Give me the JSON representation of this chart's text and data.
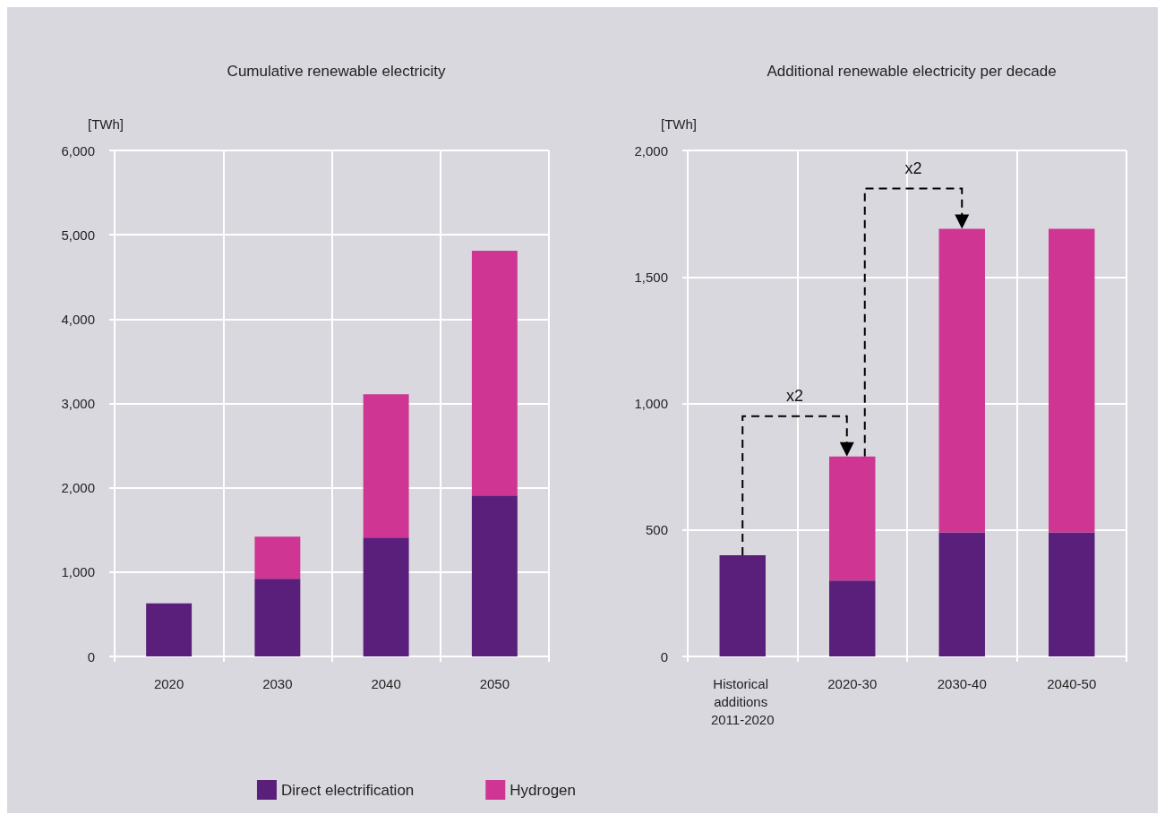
{
  "chart_data": [
    {
      "type": "bar",
      "title": "Cumulative renewable electricity",
      "ylabel": "[TWh]",
      "categories": [
        "2020",
        "2030",
        "2040",
        "2050"
      ],
      "stacked": true,
      "series": [
        {
          "name": "Direct electrification",
          "color": "#5a1e7b",
          "values": [
            630,
            920,
            1410,
            1910
          ]
        },
        {
          "name": "Hydrogen",
          "color": "#cf3592",
          "values": [
            null,
            500,
            1700,
            2900
          ]
        }
      ],
      "ylim": [
        0,
        6000
      ],
      "yticks": [
        {
          "value": 0,
          "label": "0"
        },
        {
          "value": 1000,
          "label": "1,000"
        },
        {
          "value": 2000,
          "label": "2,000"
        },
        {
          "value": 3000,
          "label": "3,000"
        },
        {
          "value": 4000,
          "label": "4,000"
        },
        {
          "value": 5000,
          "label": "5,000"
        },
        {
          "value": 6000,
          "label": "6,000"
        }
      ],
      "grid": true,
      "legend": "bottom"
    },
    {
      "type": "bar",
      "title": "Additional renewable electricity per decade",
      "ylabel": "[TWh]",
      "categories": [
        "Historical additions 2011-2020",
        "2020-30",
        "2030-40",
        "2040-50"
      ],
      "stacked": true,
      "series": [
        {
          "color": "#5a1e7b",
          "values": [
            400,
            300,
            490,
            490
          ]
        },
        {
          "color": "#cf3592",
          "values": [
            null,
            490,
            1200,
            1200
          ]
        }
      ],
      "ylim": [
        0,
        2000
      ],
      "yticks": [
        {
          "value": 0,
          "label": "0"
        },
        {
          "value": 500,
          "label": "500"
        },
        {
          "value": 1000,
          "label": "1,000"
        },
        {
          "value": 1500,
          "label": "1,500"
        },
        {
          "value": 2000,
          "label": "2,000"
        }
      ],
      "grid": true,
      "annotations": [
        "x2",
        "x2"
      ]
    }
  ]
}
